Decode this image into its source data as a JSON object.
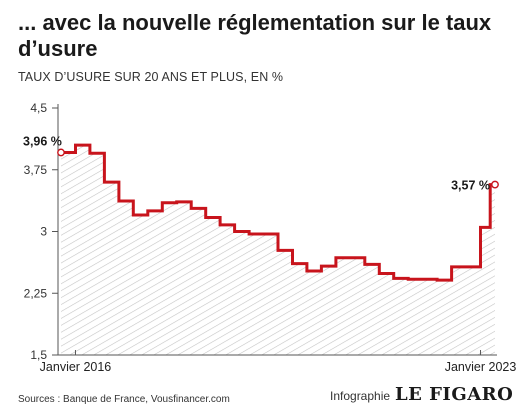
{
  "title": "... avec la nouvelle réglementation sur le taux d’usure",
  "subtitle": "TAUX D’USURE SUR 20 ANS ET PLUS, EN %",
  "footer": {
    "sources": "Sources : Banque de France, Vousfinancer.com",
    "infographie": "Infographie",
    "brand": "LE FIGARO"
  },
  "colors": {
    "line": "#c8141c",
    "hatch": "#bdbdbd",
    "text": "#1a1a1a"
  },
  "chart_data": {
    "type": "line",
    "title": "... avec la nouvelle réglementation sur le taux d’usure",
    "subtitle": "TAUX D’USURE SUR 20 ANS ET PLUS, EN %",
    "ylim": [
      1.5,
      4.5
    ],
    "yticks": [
      "4,5",
      "3,75",
      "3",
      "2,25",
      "1,5"
    ],
    "ytick_values": [
      4.5,
      3.75,
      3,
      2.25,
      1.5
    ],
    "x_labels": [
      "Janvier 2016",
      "Janvier 2023"
    ],
    "x_label_positions": [
      "2016-01",
      "2023-01"
    ],
    "x_start": "2015-10",
    "x_end": "2023-04",
    "grid": false,
    "series": [
      {
        "step": true,
        "x": [
          "2015-10",
          "2016-01",
          "2016-04",
          "2016-07",
          "2016-10",
          "2017-01",
          "2017-04",
          "2017-07",
          "2017-10",
          "2018-01",
          "2018-04",
          "2018-07",
          "2018-10",
          "2019-01",
          "2019-04",
          "2019-07",
          "2019-10",
          "2020-01",
          "2020-04",
          "2020-07",
          "2020-10",
          "2021-01",
          "2021-04",
          "2021-07",
          "2021-10",
          "2022-01",
          "2022-04",
          "2022-07",
          "2022-10",
          "2023-01",
          "2023-02",
          "2023-03",
          "2023-04"
        ],
        "values": [
          3.96,
          4.05,
          3.95,
          3.6,
          3.37,
          3.2,
          3.25,
          3.35,
          3.36,
          3.28,
          3.17,
          3.08,
          3.0,
          2.97,
          2.97,
          2.77,
          2.61,
          2.52,
          2.58,
          2.68,
          2.68,
          2.6,
          2.49,
          2.43,
          2.42,
          2.42,
          2.41,
          2.57,
          2.57,
          3.05,
          3.05,
          3.57,
          3.57
        ]
      }
    ],
    "annotations": [
      {
        "label": "3,96 %",
        "x": "2015-10",
        "y": 3.96
      },
      {
        "label": "3,57 %",
        "x": "2023-04",
        "y": 3.57
      }
    ]
  }
}
